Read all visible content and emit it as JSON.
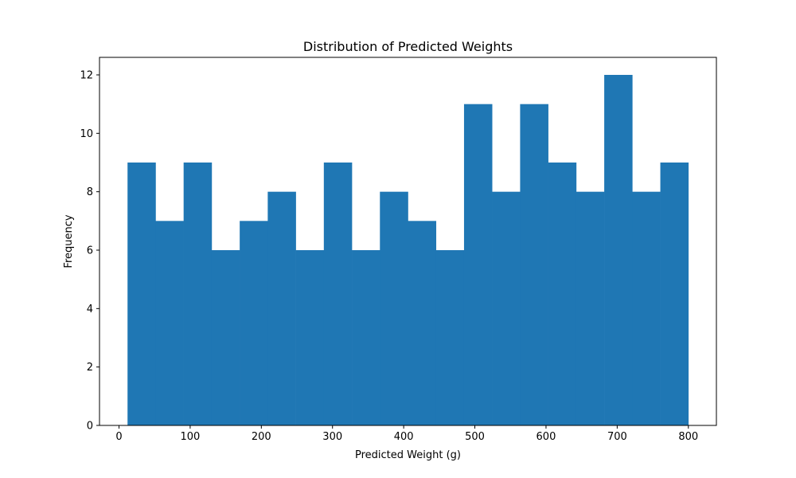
{
  "chart_data": {
    "type": "bar",
    "title": "Distribution of Predicted Weights",
    "xlabel": "Predicted Weight (g)",
    "ylabel": "Frequency",
    "bin_edges": [
      12,
      51.4,
      90.8,
      130.2,
      169.6,
      209,
      248.4,
      287.8,
      327.2,
      366.6,
      406,
      445.4,
      484.8,
      524.2,
      563.6,
      603,
      642.4,
      681.8,
      721.2,
      760.6,
      800
    ],
    "values": [
      9,
      7,
      9,
      6,
      7,
      8,
      6,
      9,
      6,
      8,
      7,
      6,
      11,
      8,
      11,
      9,
      8,
      12,
      8,
      9
    ],
    "xlim": [
      -27.4,
      839.4
    ],
    "ylim": [
      0,
      12.6
    ],
    "x_ticks": [
      0,
      100,
      200,
      300,
      400,
      500,
      600,
      700,
      800
    ],
    "y_ticks": [
      0,
      2,
      4,
      6,
      8,
      10,
      12
    ],
    "grid": false,
    "colors": {
      "bar": "#1f77b4",
      "axis": "#000000",
      "background": "#ffffff"
    }
  }
}
